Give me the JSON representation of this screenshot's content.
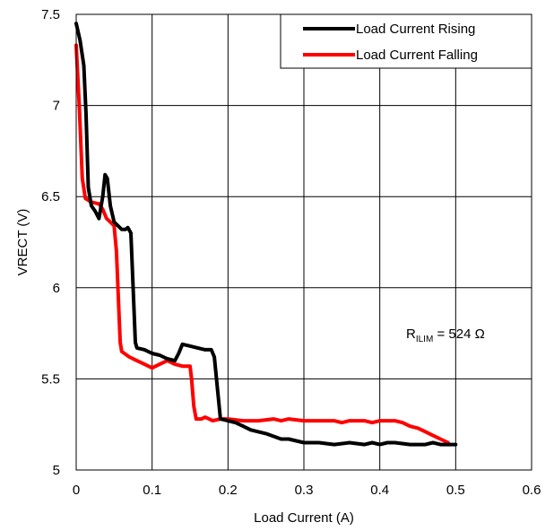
{
  "chart_data": {
    "type": "line",
    "title": "",
    "xlabel": "Load Current (A)",
    "ylabel": "VRECT (V)",
    "xlim": [
      0,
      0.6
    ],
    "ylim": [
      5,
      7.5
    ],
    "xticks": [
      "0",
      "0.1",
      "0.2",
      "0.3",
      "0.4",
      "0.5",
      "0.6"
    ],
    "yticks": [
      "5",
      "5.5",
      "6",
      "6.5",
      "7",
      "7.5"
    ],
    "grid": true,
    "legend_position": "top-right",
    "annotation": {
      "base": "R",
      "sub": "ILIM",
      "rest": " = 524 Ω"
    },
    "series": [
      {
        "name": "Load Current Rising",
        "color": "#000000",
        "points": [
          [
            0.0,
            7.45
          ],
          [
            0.005,
            7.36
          ],
          [
            0.01,
            7.22
          ],
          [
            0.013,
            6.95
          ],
          [
            0.016,
            6.55
          ],
          [
            0.02,
            6.45
          ],
          [
            0.025,
            6.42
          ],
          [
            0.03,
            6.38
          ],
          [
            0.035,
            6.5
          ],
          [
            0.038,
            6.62
          ],
          [
            0.041,
            6.6
          ],
          [
            0.045,
            6.45
          ],
          [
            0.05,
            6.36
          ],
          [
            0.055,
            6.34
          ],
          [
            0.06,
            6.32
          ],
          [
            0.065,
            6.32
          ],
          [
            0.068,
            6.33
          ],
          [
            0.072,
            6.3
          ],
          [
            0.075,
            6.0
          ],
          [
            0.078,
            5.7
          ],
          [
            0.08,
            5.67
          ],
          [
            0.09,
            5.66
          ],
          [
            0.1,
            5.64
          ],
          [
            0.11,
            5.63
          ],
          [
            0.12,
            5.61
          ],
          [
            0.13,
            5.6
          ],
          [
            0.135,
            5.64
          ],
          [
            0.14,
            5.69
          ],
          [
            0.15,
            5.68
          ],
          [
            0.16,
            5.67
          ],
          [
            0.17,
            5.66
          ],
          [
            0.178,
            5.66
          ],
          [
            0.182,
            5.62
          ],
          [
            0.186,
            5.45
          ],
          [
            0.19,
            5.28
          ],
          [
            0.2,
            5.27
          ],
          [
            0.21,
            5.26
          ],
          [
            0.22,
            5.24
          ],
          [
            0.23,
            5.22
          ],
          [
            0.25,
            5.2
          ],
          [
            0.27,
            5.17
          ],
          [
            0.28,
            5.17
          ],
          [
            0.29,
            5.16
          ],
          [
            0.3,
            5.15
          ],
          [
            0.32,
            5.15
          ],
          [
            0.34,
            5.14
          ],
          [
            0.36,
            5.15
          ],
          [
            0.38,
            5.14
          ],
          [
            0.39,
            5.15
          ],
          [
            0.4,
            5.14
          ],
          [
            0.41,
            5.15
          ],
          [
            0.42,
            5.15
          ],
          [
            0.44,
            5.14
          ],
          [
            0.46,
            5.14
          ],
          [
            0.47,
            5.15
          ],
          [
            0.48,
            5.14
          ],
          [
            0.49,
            5.14
          ],
          [
            0.5,
            5.14
          ]
        ]
      },
      {
        "name": "Load Current Falling",
        "color": "#ff0000",
        "points": [
          [
            0.0,
            7.33
          ],
          [
            0.004,
            7.0
          ],
          [
            0.008,
            6.6
          ],
          [
            0.012,
            6.49
          ],
          [
            0.02,
            6.47
          ],
          [
            0.03,
            6.46
          ],
          [
            0.035,
            6.43
          ],
          [
            0.04,
            6.38
          ],
          [
            0.045,
            6.36
          ],
          [
            0.05,
            6.34
          ],
          [
            0.053,
            6.2
          ],
          [
            0.056,
            5.9
          ],
          [
            0.058,
            5.7
          ],
          [
            0.06,
            5.65
          ],
          [
            0.07,
            5.62
          ],
          [
            0.08,
            5.6
          ],
          [
            0.09,
            5.58
          ],
          [
            0.1,
            5.56
          ],
          [
            0.11,
            5.58
          ],
          [
            0.12,
            5.6
          ],
          [
            0.13,
            5.58
          ],
          [
            0.14,
            5.57
          ],
          [
            0.15,
            5.57
          ],
          [
            0.152,
            5.5
          ],
          [
            0.155,
            5.35
          ],
          [
            0.158,
            5.28
          ],
          [
            0.165,
            5.28
          ],
          [
            0.17,
            5.29
          ],
          [
            0.18,
            5.27
          ],
          [
            0.19,
            5.28
          ],
          [
            0.2,
            5.28
          ],
          [
            0.22,
            5.27
          ],
          [
            0.24,
            5.27
          ],
          [
            0.26,
            5.28
          ],
          [
            0.27,
            5.27
          ],
          [
            0.28,
            5.28
          ],
          [
            0.3,
            5.27
          ],
          [
            0.32,
            5.27
          ],
          [
            0.34,
            5.27
          ],
          [
            0.35,
            5.26
          ],
          [
            0.36,
            5.27
          ],
          [
            0.38,
            5.27
          ],
          [
            0.39,
            5.26
          ],
          [
            0.4,
            5.27
          ],
          [
            0.42,
            5.27
          ],
          [
            0.43,
            5.26
          ],
          [
            0.44,
            5.24
          ],
          [
            0.45,
            5.23
          ],
          [
            0.46,
            5.21
          ],
          [
            0.47,
            5.19
          ],
          [
            0.48,
            5.17
          ],
          [
            0.49,
            5.15
          ]
        ]
      }
    ]
  }
}
